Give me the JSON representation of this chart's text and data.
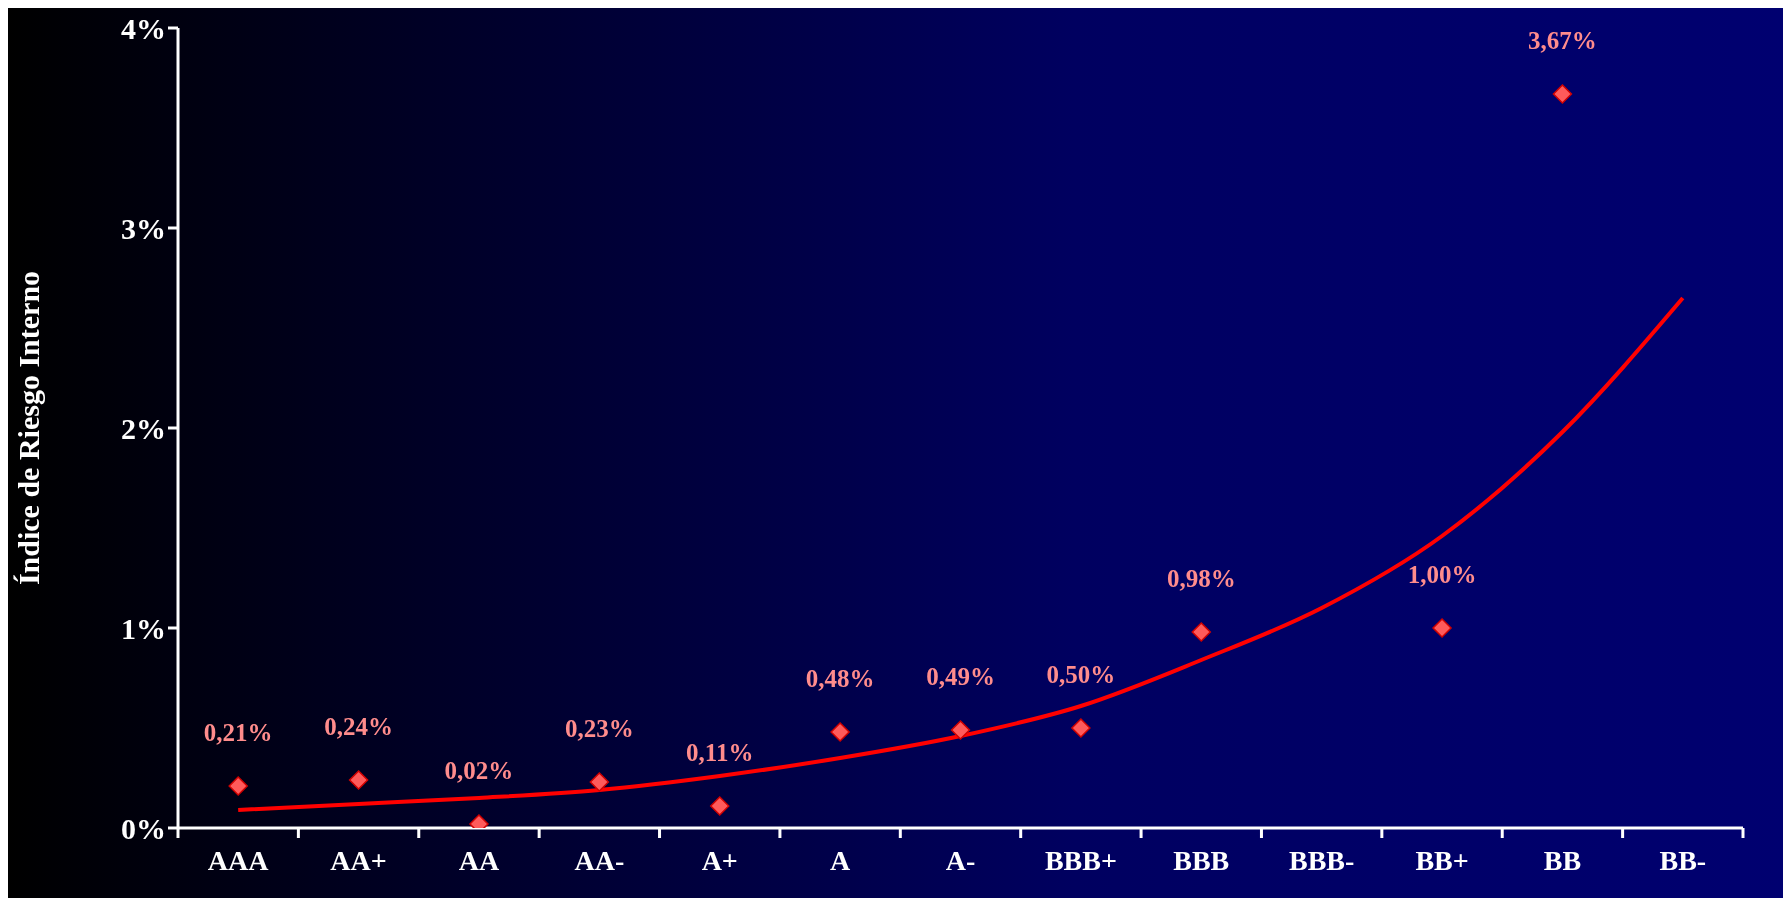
{
  "chart_data": {
    "type": "scatter",
    "ylabel": "Índice de Riesgo Interno",
    "categories": [
      "AAA",
      "AA+",
      "AA",
      "AA-",
      "A+",
      "A",
      "A-",
      "BBB+",
      "BBB",
      "BBB-",
      "BB+",
      "BB",
      "BB-"
    ],
    "ylim": [
      0,
      4
    ],
    "yticks": [
      {
        "value": 0,
        "label": "0%"
      },
      {
        "value": 1,
        "label": "1%"
      },
      {
        "value": 2,
        "label": "2%"
      },
      {
        "value": 3,
        "label": "3%"
      },
      {
        "value": 4,
        "label": "4%"
      }
    ],
    "marker": "diamond",
    "series": [
      {
        "type": "scatter",
        "color": "#ff5a5a",
        "values": [
          0.21,
          0.24,
          0.02,
          0.23,
          0.11,
          0.48,
          0.49,
          0.5,
          0.98,
          null,
          1.0,
          3.67,
          null
        ],
        "value_labels": [
          "0,21%",
          "0,24%",
          "0,02%",
          "0,23%",
          "0,11%",
          "0,48%",
          "0,49%",
          "0,50%",
          "0,98%",
          null,
          "1,00%",
          "3,67%",
          null
        ]
      },
      {
        "type": "line",
        "color": "#ff0000",
        "marker": "none",
        "values": [
          0.09,
          0.12,
          0.15,
          0.19,
          0.26,
          0.35,
          0.46,
          0.61,
          0.84,
          1.1,
          1.46,
          1.98,
          2.65
        ]
      }
    ]
  }
}
